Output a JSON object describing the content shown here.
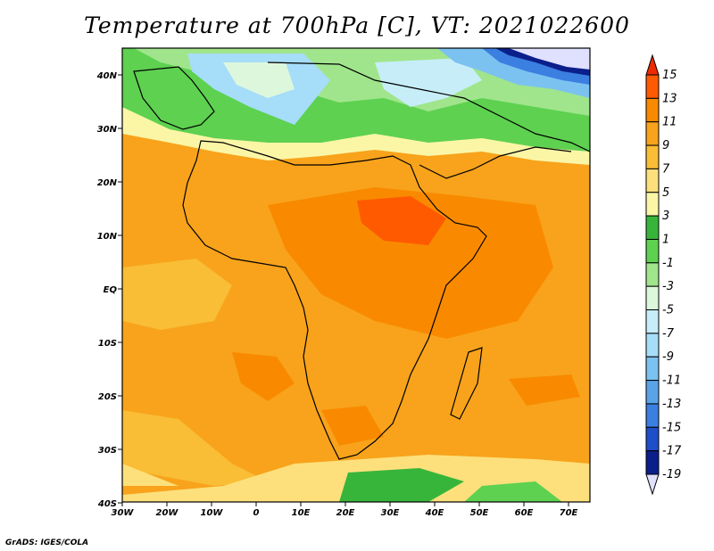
{
  "title": "Temperature at 700hPa [C], VT: 2021022600",
  "credit": "GrADS: IGES/COLA",
  "map": {
    "lon_labels": [
      "30W",
      "20W",
      "10W",
      "0",
      "10E",
      "20E",
      "30E",
      "40E",
      "50E",
      "60E",
      "70E"
    ],
    "lat_labels": [
      "40N",
      "30N",
      "20N",
      "10N",
      "EQ",
      "10S",
      "20S",
      "30S",
      "40S"
    ]
  },
  "colorbar": {
    "labels": [
      "15",
      "13",
      "11",
      "9",
      "7",
      "5",
      "3",
      "1",
      "-1",
      "-3",
      "-5",
      "-7",
      "-9",
      "-11",
      "-13",
      "-15",
      "-17",
      "-19"
    ],
    "colors": [
      "#ee2b00",
      "#ff5a00",
      "#f98a00",
      "#f8a31b",
      "#f9bd36",
      "#fde07c",
      "#fbf6a6",
      "#37b53a",
      "#5ed150",
      "#a0e58c",
      "#ddf7dd",
      "#c7eef8",
      "#a6ddf8",
      "#7cc2f0",
      "#5aa4e6",
      "#3b7fe0",
      "#1e4fc8",
      "#0b1f8a",
      "#e0e0ff"
    ]
  }
}
